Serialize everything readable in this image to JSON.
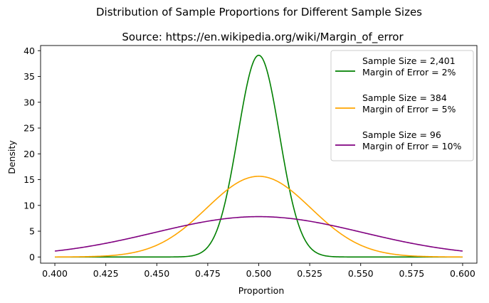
{
  "chart_data": {
    "type": "line",
    "suptitle": "Distribution of Sample Proportions for Different Sample Sizes",
    "title": "Source: https://en.wikipedia.org/wiki/Margin_of_error",
    "xlabel": "Proportion",
    "ylabel": "Density",
    "xlim": [
      0.393,
      0.607
    ],
    "ylim": [
      -1.2,
      41.0
    ],
    "x_ticks": [
      "0.400",
      "0.425",
      "0.450",
      "0.475",
      "0.500",
      "0.525",
      "0.550",
      "0.575",
      "0.600"
    ],
    "x_tick_values": [
      0.4,
      0.425,
      0.45,
      0.475,
      0.5,
      0.525,
      0.55,
      0.575,
      0.6
    ],
    "y_ticks": [
      "0",
      "5",
      "10",
      "15",
      "20",
      "25",
      "30",
      "35",
      "40"
    ],
    "y_tick_values": [
      0,
      5,
      10,
      15,
      20,
      25,
      30,
      35,
      40
    ],
    "grid": false,
    "legend_position": "top-right",
    "x_range": [
      0.4,
      0.6
    ],
    "series": [
      {
        "name": "Sample Size = 2,401\nMargin of Error = 2%",
        "line1": "Sample Size = 2,401",
        "line2": "Margin of Error = 2%",
        "mean": 0.5,
        "sd": 0.0102,
        "color": "#008000"
      },
      {
        "name": "Sample Size = 384\nMargin of Error = 5%",
        "line1": "Sample Size = 384",
        "line2": "Margin of Error = 5%",
        "mean": 0.5,
        "sd": 0.0255,
        "color": "#FFA500"
      },
      {
        "name": "Sample Size = 96\nMargin of Error = 10%",
        "line1": "Sample Size = 96",
        "line2": "Margin of Error = 10%",
        "mean": 0.5,
        "sd": 0.051,
        "color": "#800080"
      }
    ]
  }
}
